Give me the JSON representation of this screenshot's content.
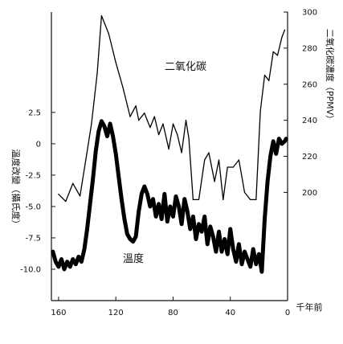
{
  "chart_data": {
    "type": "line",
    "x_unit_label": "千年前",
    "x_ticks": [
      160,
      120,
      80,
      40,
      0
    ],
    "xlim": [
      165,
      0
    ],
    "left_axis": {
      "label": "溫度改變（攝氏度）",
      "ticks": [
        2.5,
        0,
        -2.5,
        -5.0,
        -7.5,
        -10.0
      ],
      "tick_labels": [
        "2.5",
        "0",
        "-2.5",
        "-5.0",
        "-7.5",
        "-10.0"
      ],
      "ylim": [
        -12.5,
        10.5
      ]
    },
    "right_axis": {
      "label": "二氧化碳濃度（PPMV）",
      "ticks": [
        200,
        220,
        240,
        260,
        280,
        300
      ],
      "tick_labels": [
        "200",
        "220",
        "240",
        "260",
        "280",
        "300"
      ],
      "ylim": [
        140,
        300
      ]
    },
    "annotations": {
      "co2": "二氧化碳",
      "temperature": "溫度"
    },
    "series": [
      {
        "name": "二氧化碳",
        "axis": "right",
        "x": [
          160,
          155,
          150,
          145,
          141,
          137,
          133,
          130,
          125,
          120,
          115,
          110,
          106,
          104,
          100,
          96,
          93,
          90,
          87,
          83,
          80,
          77,
          74,
          71,
          69,
          66,
          62,
          58,
          55,
          51,
          48,
          45,
          42,
          38,
          34,
          30,
          26,
          22,
          19,
          16,
          13,
          10,
          7,
          4,
          2
        ],
        "y": [
          199,
          195,
          205,
          198,
          218,
          238,
          266,
          298,
          288,
          272,
          258,
          242,
          248,
          240,
          244,
          236,
          242,
          232,
          238,
          224,
          238,
          232,
          222,
          240,
          230,
          196,
          196,
          218,
          222,
          206,
          218,
          196,
          214,
          214,
          218,
          200,
          196,
          196,
          245,
          265,
          262,
          278,
          276,
          286,
          290
        ]
      },
      {
        "name": "溫度",
        "axis": "left",
        "x": [
          164,
          162,
          160,
          158,
          156,
          154,
          152,
          150,
          148,
          146,
          144,
          142,
          140,
          138,
          136,
          134,
          132,
          130,
          128,
          126,
          124,
          122,
          120,
          118,
          116,
          114,
          112,
          110,
          108,
          106,
          104,
          102,
          100,
          98,
          96,
          94,
          92,
          90,
          88,
          86,
          84,
          82,
          80,
          78,
          76,
          74,
          72,
          70,
          68,
          66,
          64,
          62,
          60,
          58,
          56,
          54,
          52,
          50,
          48,
          46,
          44,
          42,
          40,
          38,
          36,
          34,
          32,
          30,
          28,
          26,
          24,
          22,
          20,
          18,
          16,
          14,
          12,
          10,
          8,
          6,
          4,
          2,
          1
        ],
        "y": [
          -8.6,
          -9.4,
          -9.8,
          -9.2,
          -10.0,
          -9.4,
          -9.8,
          -9.2,
          -9.6,
          -9.0,
          -9.4,
          -8.4,
          -6.8,
          -4.8,
          -2.8,
          -0.6,
          1.0,
          1.8,
          1.4,
          0.6,
          1.6,
          0.6,
          -0.8,
          -2.6,
          -4.4,
          -6.0,
          -7.2,
          -7.6,
          -7.8,
          -7.4,
          -5.4,
          -4.0,
          -3.4,
          -4.0,
          -5.0,
          -4.4,
          -5.8,
          -4.8,
          -6.0,
          -4.0,
          -6.2,
          -5.0,
          -5.8,
          -4.2,
          -5.0,
          -6.4,
          -4.4,
          -5.4,
          -6.8,
          -5.8,
          -7.6,
          -6.4,
          -7.0,
          -5.8,
          -8.0,
          -6.6,
          -7.4,
          -8.6,
          -7.0,
          -8.6,
          -7.6,
          -8.8,
          -6.8,
          -8.4,
          -9.4,
          -8.0,
          -9.6,
          -8.6,
          -9.2,
          -9.8,
          -8.4,
          -9.6,
          -8.8,
          -10.2,
          -6.0,
          -3.0,
          -1.0,
          0.2,
          -0.8,
          0.4,
          0.0,
          0.2,
          0.4
        ]
      }
    ]
  }
}
